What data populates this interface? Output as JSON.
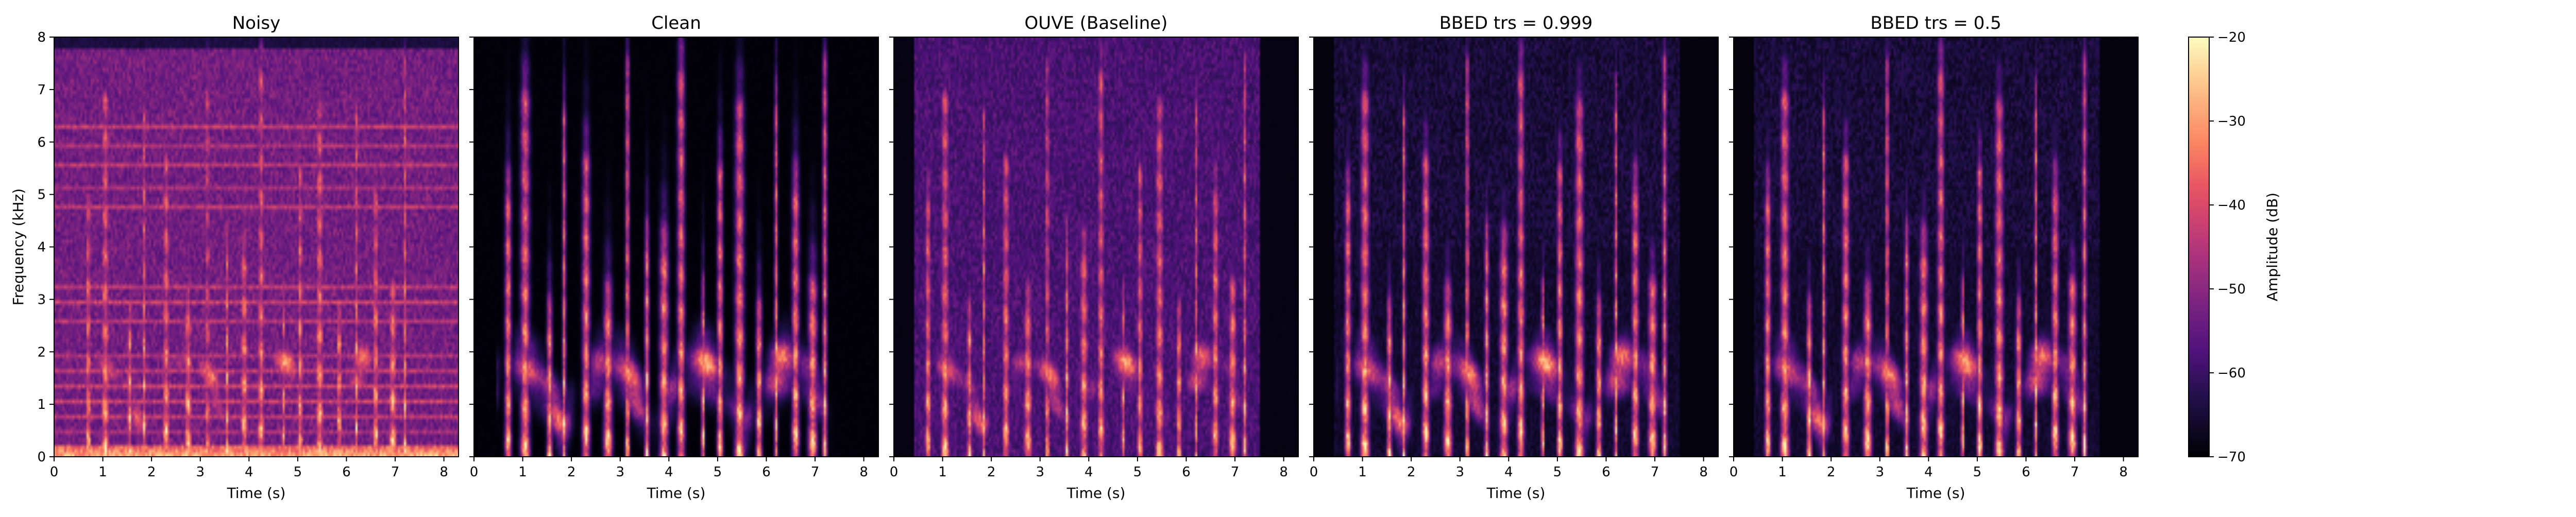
{
  "chart_data": {
    "type": "heatmap",
    "xlabel": "Time (s)",
    "ylabel": "Frequency (kHz)",
    "xlim": [
      0,
      8.3
    ],
    "ylim": [
      0,
      8
    ],
    "xticks": [
      0,
      1,
      2,
      3,
      4,
      5,
      6,
      7,
      8
    ],
    "yticks": [
      0,
      1,
      2,
      3,
      4,
      5,
      6,
      7,
      8
    ],
    "xtick_labels": [
      "0",
      "1",
      "2",
      "3",
      "4",
      "5",
      "6",
      "7",
      "8"
    ],
    "ytick_labels": [
      "0",
      "1",
      "2",
      "3",
      "4",
      "5",
      "6",
      "7",
      "8"
    ],
    "colormap": "magma",
    "colorbar": {
      "label": "Amplitude (dB)",
      "range": [
        -70,
        -20
      ],
      "ticks": [
        -20,
        -30,
        -40,
        -50,
        -60,
        -70
      ],
      "tick_labels": [
        "−20",
        "−30",
        "−40",
        "−50",
        "−60",
        "−70"
      ]
    },
    "speech_bursts_s": [
      0.7,
      1.05,
      1.55,
      1.85,
      2.3,
      2.75,
      3.15,
      3.55,
      3.9,
      4.25,
      4.7,
      5.05,
      5.45,
      5.85,
      6.2,
      6.6,
      6.95,
      7.2
    ],
    "panels": [
      {
        "title": "Noisy",
        "kind": "noisy",
        "speech_end_s": 7.4
      },
      {
        "title": "Clean",
        "kind": "clean",
        "speech_end_s": 7.4
      },
      {
        "title": "OUVE (Baseline)",
        "kind": "ouve",
        "speech_end_s": 7.4
      },
      {
        "title": "BBED trs = 0.999",
        "kind": "bbed",
        "speech_end_s": 7.4
      },
      {
        "title": "BBED trs = 0.5",
        "kind": "bbed",
        "speech_end_s": 7.4
      }
    ]
  }
}
